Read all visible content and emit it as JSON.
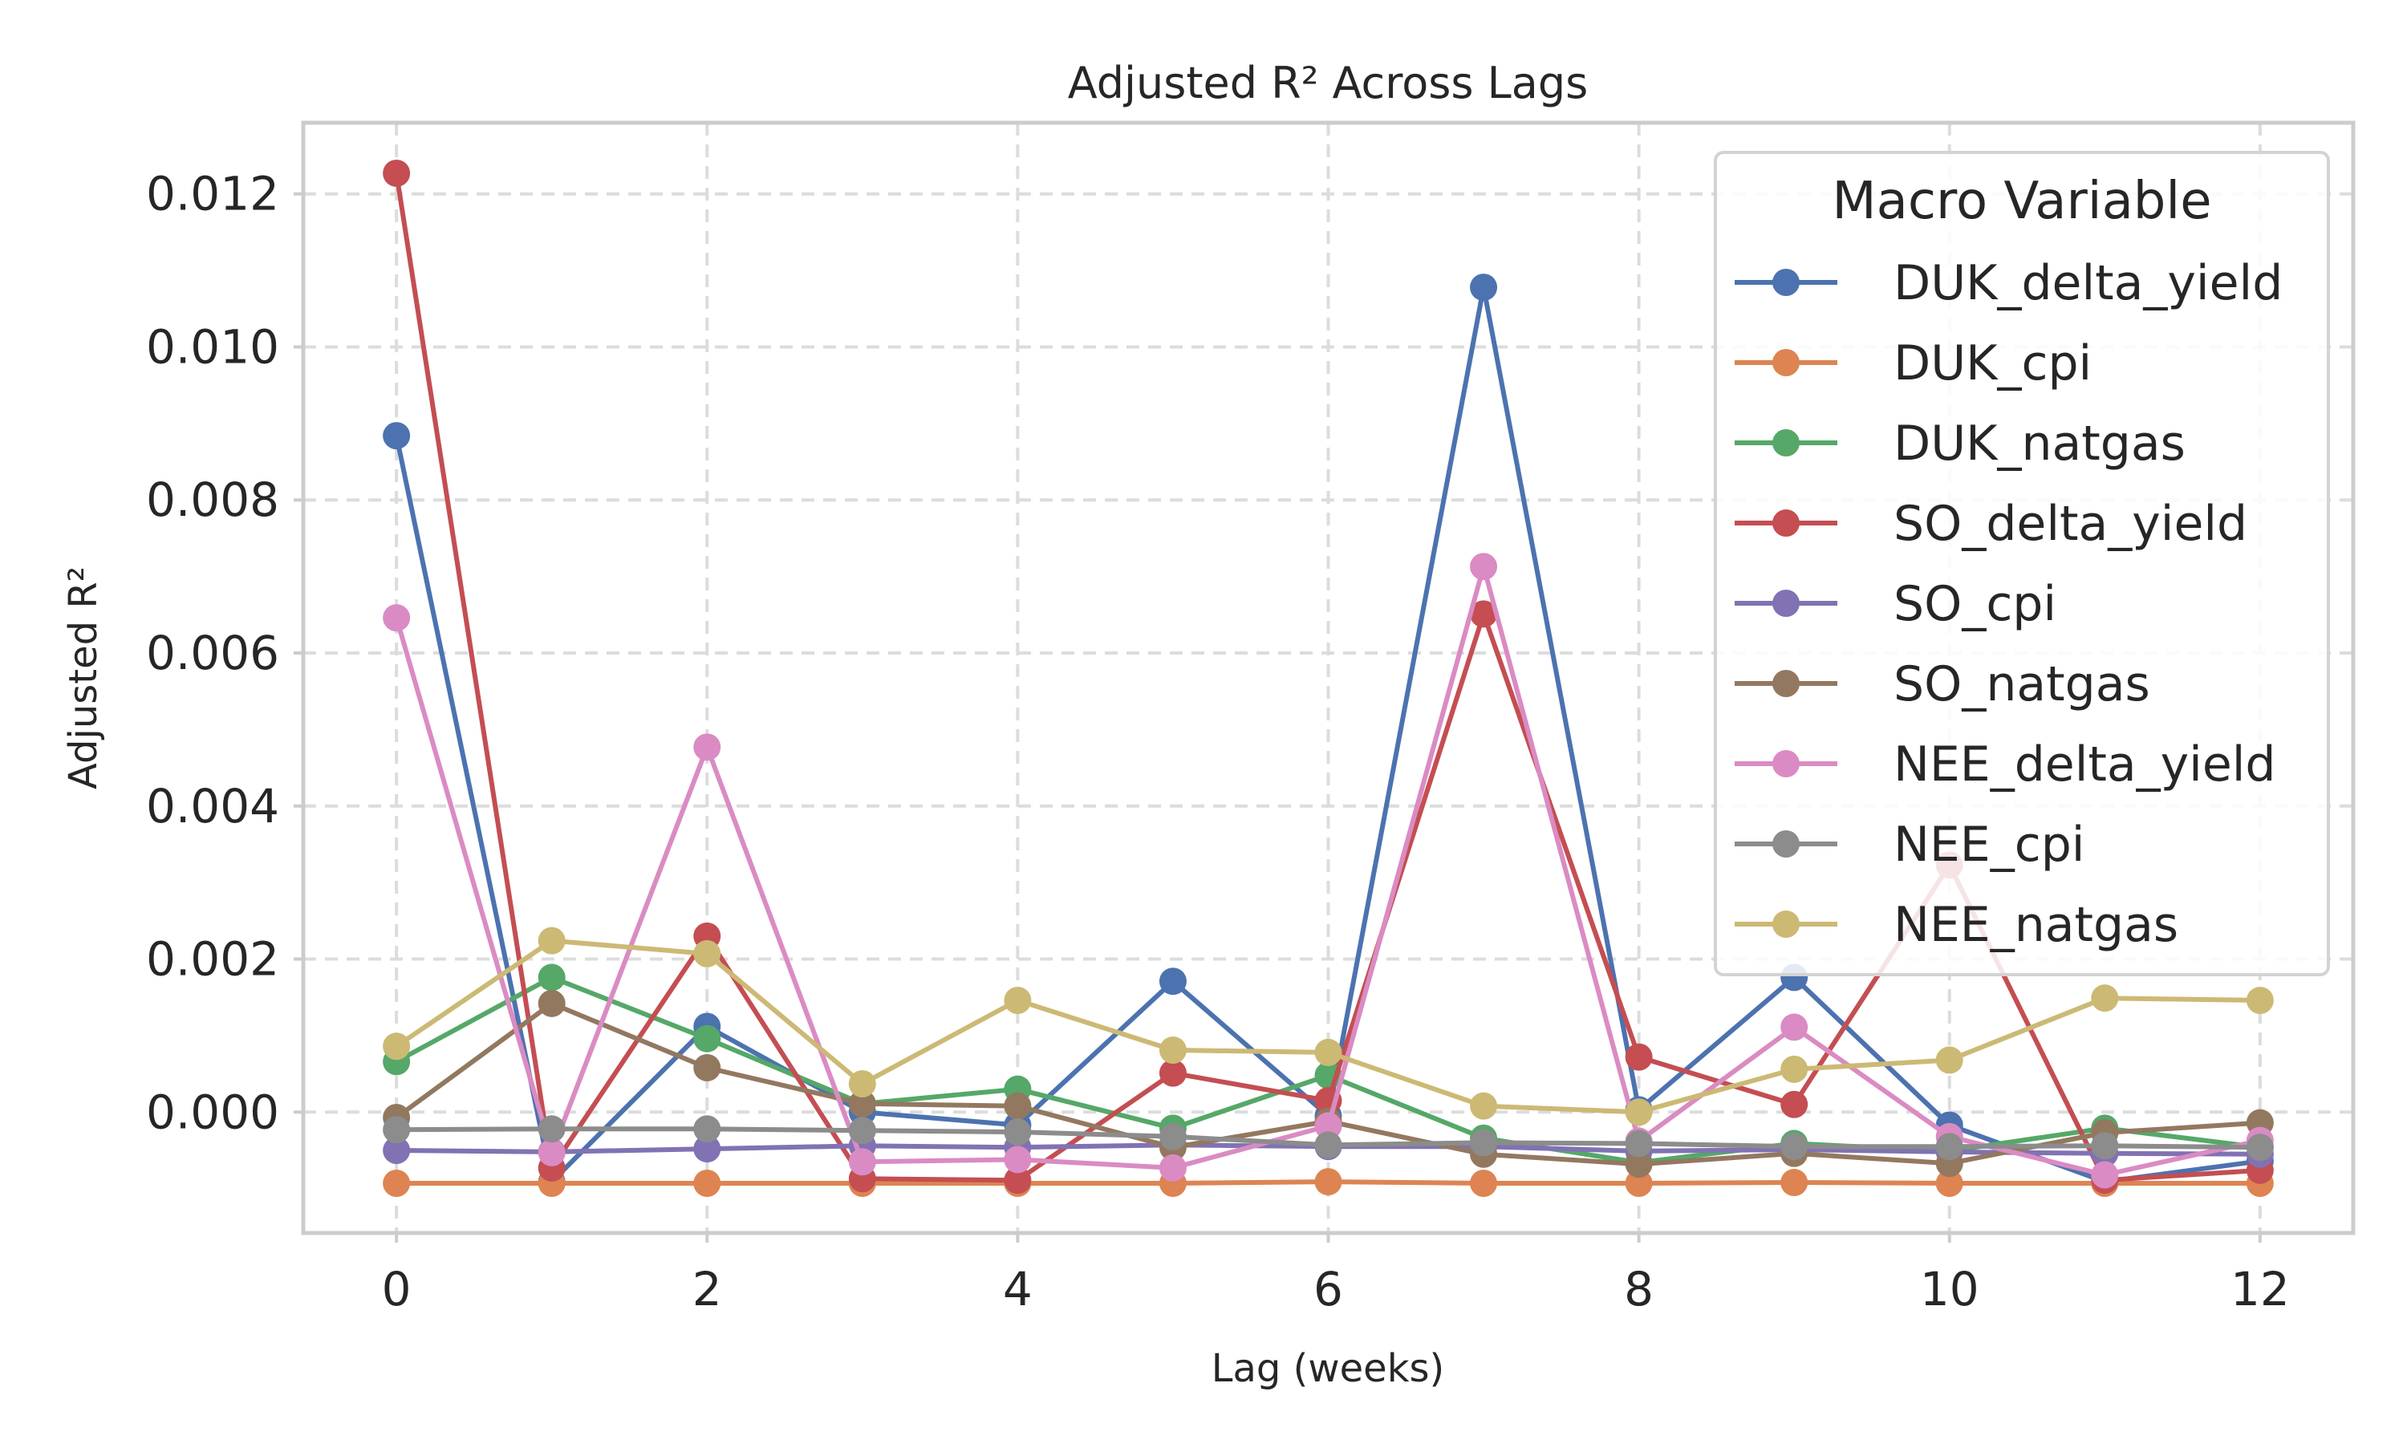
{
  "chart_data": {
    "type": "line",
    "title": "Adjusted R² Across Lags",
    "xlabel": "Lag (weeks)",
    "ylabel": "Adjusted R²",
    "x": [
      0,
      1,
      2,
      3,
      4,
      5,
      6,
      7,
      8,
      9,
      10,
      11,
      12
    ],
    "xticks": [
      0,
      2,
      4,
      6,
      8,
      10,
      12
    ],
    "xtick_labels": [
      "0",
      "2",
      "4",
      "6",
      "8",
      "10",
      "12"
    ],
    "yticks": [
      0.0,
      0.002,
      0.004,
      0.006,
      0.008,
      0.01,
      0.012
    ],
    "ytick_labels": [
      "0.000",
      "0.002",
      "0.004",
      "0.006",
      "0.008",
      "0.010",
      "0.012"
    ],
    "xlim": [
      -0.6,
      12.6
    ],
    "ylim": [
      -0.00158,
      0.01293
    ],
    "grid": true,
    "legend": {
      "title": "Macro Variable",
      "placement": "top-right"
    },
    "series": [
      {
        "name": "DUK_delta_yield",
        "color": "#4c72b0",
        "values": [
          0.00884,
          -0.00091,
          0.00112,
          0.0,
          -0.00017,
          0.00171,
          -5e-05,
          0.01078,
          3e-05,
          0.00176,
          -0.00017,
          -0.00091,
          -0.00064
        ]
      },
      {
        "name": "DUK_cpi",
        "color": "#dd8452",
        "values": [
          -0.00093,
          -0.00093,
          -0.00093,
          -0.00093,
          -0.00093,
          -0.00093,
          -0.00091,
          -0.00093,
          -0.00093,
          -0.00092,
          -0.00093,
          -0.00093,
          -0.00093
        ]
      },
      {
        "name": "DUK_natgas",
        "color": "#55a868",
        "values": [
          0.00066,
          0.00176,
          0.00096,
          0.00011,
          0.0003,
          -0.00021,
          0.00048,
          -0.00034,
          -0.00066,
          -0.00041,
          -0.00051,
          -0.00021,
          -0.00046
        ]
      },
      {
        "name": "SO_delta_yield",
        "color": "#c44e52",
        "values": [
          0.01227,
          -0.00073,
          0.0023,
          -0.00087,
          -0.00089,
          0.00051,
          0.00015,
          0.00651,
          0.00072,
          0.0001,
          0.00323,
          -0.00089,
          -0.00076
        ]
      },
      {
        "name": "SO_cpi",
        "color": "#8172b3",
        "values": [
          -0.0005,
          -0.00052,
          -0.00048,
          -0.00044,
          -0.00046,
          -0.00043,
          -0.00045,
          -0.00045,
          -0.00051,
          -0.00049,
          -0.00052,
          -0.00054,
          -0.00055
        ]
      },
      {
        "name": "SO_natgas",
        "color": "#937860",
        "values": [
          -7e-05,
          0.00142,
          0.00058,
          0.00011,
          8e-05,
          -0.00046,
          -0.00012,
          -0.00055,
          -0.00068,
          -0.00054,
          -0.00067,
          -0.00027,
          -0.00014
        ]
      },
      {
        "name": "NEE_delta_yield",
        "color": "#da8bc3",
        "values": [
          0.00646,
          -0.00053,
          0.00477,
          -0.00065,
          -0.00062,
          -0.00073,
          -0.00018,
          0.00713,
          -0.00038,
          0.00111,
          -0.00032,
          -0.00082,
          -0.00037
        ]
      },
      {
        "name": "NEE_cpi",
        "color": "#8c8c8c",
        "values": [
          -0.00023,
          -0.00022,
          -0.00022,
          -0.00024,
          -0.00026,
          -0.00032,
          -0.00043,
          -0.0004,
          -0.00041,
          -0.00045,
          -0.00045,
          -0.00044,
          -0.00046
        ]
      },
      {
        "name": "NEE_natgas",
        "color": "#ccb974",
        "values": [
          0.00086,
          0.00224,
          0.00207,
          0.00037,
          0.00146,
          0.00081,
          0.00078,
          8e-05,
          0.0,
          0.00056,
          0.00068,
          0.00149,
          0.00146
        ]
      }
    ]
  }
}
